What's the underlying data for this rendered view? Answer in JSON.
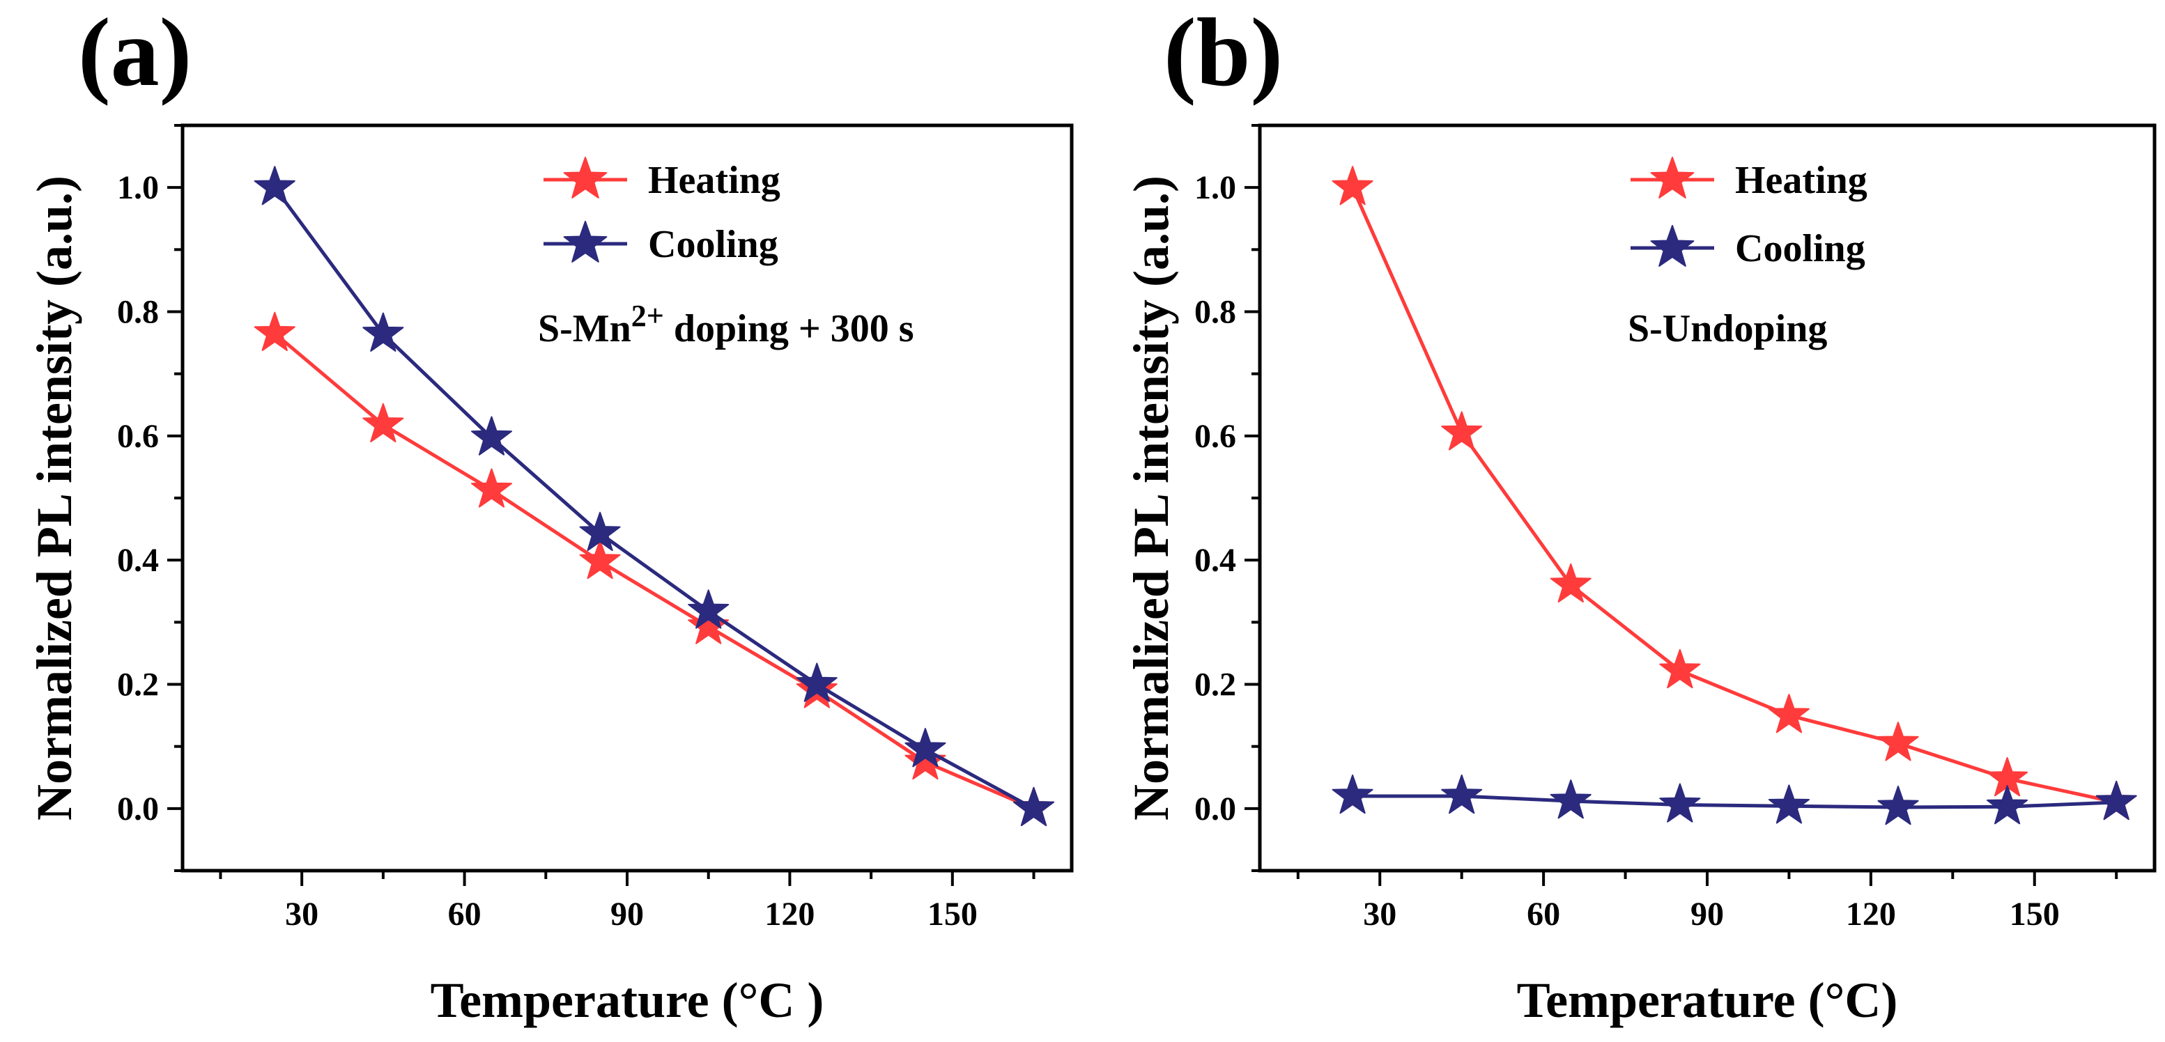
{
  "chart_data": [
    {
      "type": "line",
      "panel_label": "(a)",
      "x": [
        25,
        45,
        65,
        85,
        105,
        125,
        145,
        165
      ],
      "series": [
        {
          "name": "Heating",
          "color": "#ff3b3b",
          "values": [
            0.765,
            0.618,
            0.513,
            0.398,
            0.293,
            0.19,
            0.075,
            0.0
          ]
        },
        {
          "name": "Cooling",
          "color": "#2b2a7e",
          "values": [
            1.0,
            0.764,
            0.597,
            0.443,
            0.318,
            0.2,
            0.095,
            0.0
          ]
        }
      ],
      "annotation": {
        "base": "S-Mn",
        "sup": "2+",
        "rest": " doping + 300 s"
      },
      "xlabel": "Temperature (°C )",
      "ylabel": "Normalized PL intensity (a.u.)",
      "xlim": [
        8,
        172
      ],
      "ylim": [
        -0.1,
        1.1
      ],
      "xticks": [
        30,
        60,
        90,
        120,
        150
      ],
      "yticks": [
        0.0,
        0.2,
        0.4,
        0.6,
        0.8,
        1.0
      ],
      "ytick_labels": [
        "0.0",
        "0.2",
        "0.4",
        "0.6",
        "0.8",
        "1.0"
      ],
      "legend_loc": "top-center"
    },
    {
      "type": "line",
      "panel_label": "(b)",
      "x": [
        25,
        45,
        65,
        85,
        105,
        125,
        145,
        165
      ],
      "series": [
        {
          "name": "Heating",
          "color": "#ff3b3b",
          "values": [
            1.0,
            0.605,
            0.36,
            0.222,
            0.15,
            0.105,
            0.048,
            0.01
          ]
        },
        {
          "name": "Cooling",
          "color": "#2b2a7e",
          "values": [
            0.02,
            0.02,
            0.012,
            0.006,
            0.004,
            0.002,
            0.003,
            0.01
          ]
        }
      ],
      "annotation": {
        "base": "S-Undoping",
        "sup": "",
        "rest": ""
      },
      "xlabel": "Temperature (°C)",
      "ylabel": "Normalized PL intensity (a.u.)",
      "xlim": [
        8,
        172
      ],
      "ylim": [
        -0.1,
        1.1
      ],
      "xticks": [
        30,
        60,
        90,
        120,
        150
      ],
      "yticks": [
        0.0,
        0.2,
        0.4,
        0.6,
        0.8,
        1.0
      ],
      "ytick_labels": [
        "0.0",
        "0.2",
        "0.4",
        "0.6",
        "0.8",
        "1.0"
      ],
      "legend_loc": "top-center"
    }
  ]
}
